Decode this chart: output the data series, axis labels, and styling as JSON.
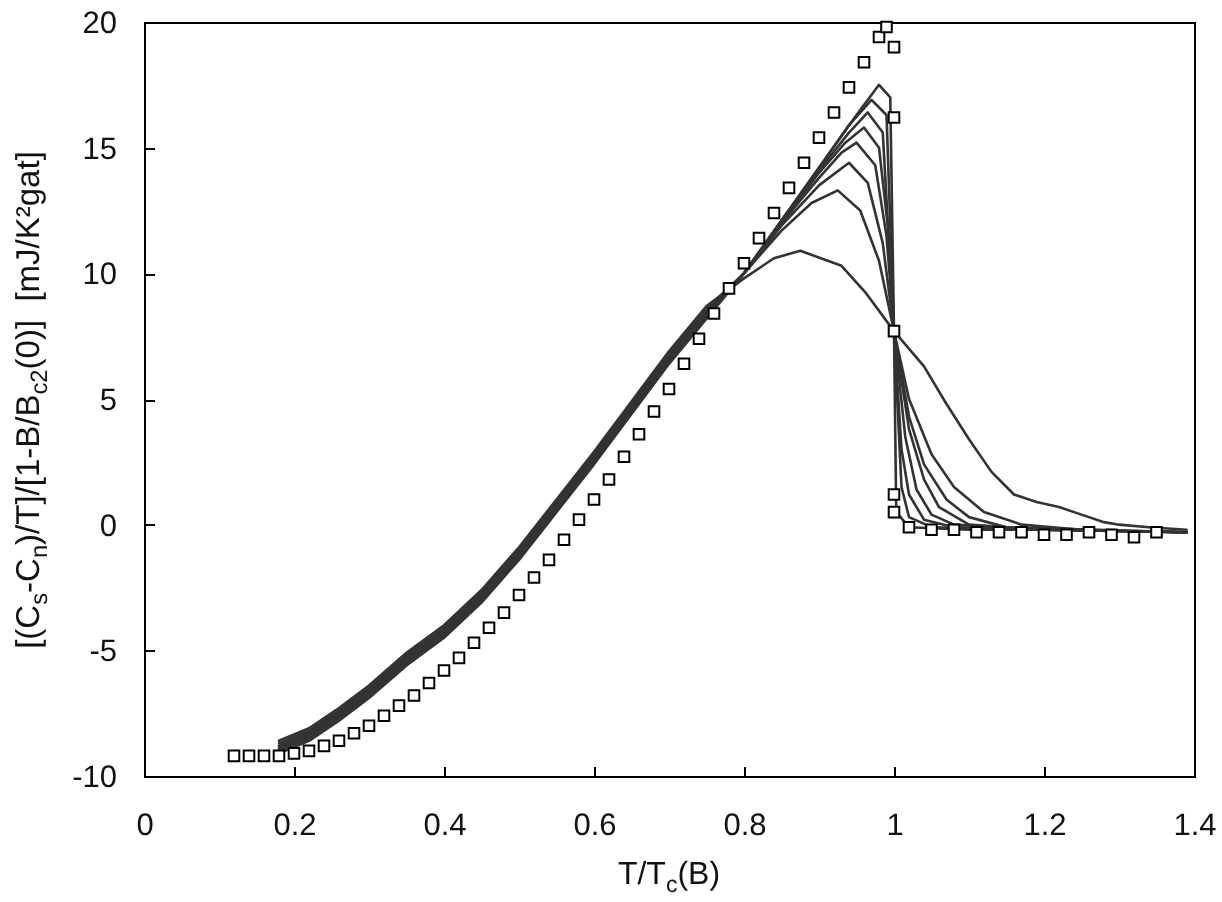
{
  "chart_data": {
    "type": "line",
    "xlabel": "T/T$_{c}$(B)",
    "ylabel": "[(C$_{s}$-C$_{n}$)/T]/[1-B/B$_{c2}$(0)]  [mJ/K²gat]",
    "xlim": [
      0,
      1.4
    ],
    "ylim": [
      -10,
      20
    ],
    "xticks": [
      0,
      0.2,
      0.4,
      0.6,
      0.8,
      1,
      1.2,
      1.4
    ],
    "yticks": [
      -10,
      -5,
      0,
      5,
      10,
      15,
      20
    ],
    "series": [
      {
        "color": "#333333",
        "x": [
          0.18,
          0.22,
          0.26,
          0.3,
          0.35,
          0.4,
          0.45,
          0.5,
          0.55,
          0.6,
          0.65,
          0.7,
          0.75,
          0.8,
          0.85,
          0.9,
          0.95,
          0.98,
          0.995,
          1,
          1.003,
          1.02,
          1.1,
          1.2,
          1.39
        ],
        "values": [
          -9.1,
          -8.6,
          -7.8,
          -6.9,
          -5.6,
          -4.5,
          -3.1,
          -1.4,
          0.5,
          2.4,
          4.4,
          6.4,
          8.2,
          10.0,
          12.1,
          14.2,
          16.3,
          17.5,
          17.0,
          7.7,
          0.5,
          -0.1,
          -0.2,
          -0.2,
          -0.3
        ]
      },
      {
        "color": "#333333",
        "x": [
          0.18,
          0.22,
          0.26,
          0.3,
          0.35,
          0.4,
          0.45,
          0.5,
          0.55,
          0.6,
          0.65,
          0.7,
          0.75,
          0.8,
          0.85,
          0.9,
          0.94,
          0.97,
          0.99,
          1,
          1.01,
          1.02,
          1.05,
          1.2,
          1.39
        ],
        "values": [
          -9.0,
          -8.5,
          -7.7,
          -6.8,
          -5.5,
          -4.4,
          -3.0,
          -1.3,
          0.6,
          2.5,
          4.5,
          6.5,
          8.3,
          10.0,
          12.1,
          14.2,
          15.9,
          16.9,
          16.3,
          7.7,
          1.5,
          0.3,
          -0.1,
          -0.2,
          -0.3
        ]
      },
      {
        "color": "#333333",
        "x": [
          0.18,
          0.22,
          0.26,
          0.3,
          0.35,
          0.4,
          0.45,
          0.5,
          0.55,
          0.6,
          0.65,
          0.7,
          0.75,
          0.8,
          0.85,
          0.9,
          0.94,
          0.965,
          0.985,
          1,
          1.01,
          1.02,
          1.04,
          1.08,
          1.2,
          1.39
        ],
        "values": [
          -8.9,
          -8.4,
          -7.6,
          -6.7,
          -5.4,
          -4.3,
          -2.9,
          -1.2,
          0.7,
          2.6,
          4.6,
          6.6,
          8.4,
          10.0,
          12.1,
          14.1,
          15.6,
          16.4,
          15.6,
          7.7,
          3.0,
          1.2,
          0.2,
          -0.1,
          -0.2,
          -0.3
        ]
      },
      {
        "color": "#333333",
        "x": [
          0.18,
          0.22,
          0.26,
          0.3,
          0.35,
          0.4,
          0.45,
          0.5,
          0.55,
          0.6,
          0.65,
          0.7,
          0.75,
          0.8,
          0.85,
          0.9,
          0.935,
          0.96,
          0.98,
          0.995,
          1,
          1.015,
          1.03,
          1.05,
          1.08,
          1.2,
          1.39
        ],
        "values": [
          -8.9,
          -8.4,
          -7.6,
          -6.7,
          -5.4,
          -4.3,
          -2.9,
          -1.2,
          0.7,
          2.6,
          4.6,
          6.6,
          8.4,
          10.0,
          12.0,
          14.0,
          15.2,
          15.8,
          15.0,
          11.0,
          7.7,
          3.5,
          1.4,
          0.4,
          0.0,
          -0.2,
          -0.3
        ]
      },
      {
        "color": "#333333",
        "x": [
          0.18,
          0.22,
          0.26,
          0.3,
          0.35,
          0.4,
          0.45,
          0.5,
          0.55,
          0.6,
          0.65,
          0.7,
          0.75,
          0.8,
          0.85,
          0.9,
          0.93,
          0.95,
          0.975,
          0.99,
          1,
          1.02,
          1.04,
          1.06,
          1.1,
          1.2,
          1.39
        ],
        "values": [
          -8.8,
          -8.3,
          -7.5,
          -6.6,
          -5.3,
          -4.2,
          -2.8,
          -1.1,
          0.8,
          2.7,
          4.7,
          6.7,
          8.5,
          10.0,
          12.0,
          13.8,
          14.8,
          15.2,
          14.3,
          11.5,
          7.7,
          3.8,
          1.8,
          0.7,
          0.0,
          -0.2,
          -0.3
        ]
      },
      {
        "color": "#333333",
        "x": [
          0.18,
          0.22,
          0.26,
          0.3,
          0.35,
          0.4,
          0.45,
          0.5,
          0.55,
          0.6,
          0.65,
          0.7,
          0.75,
          0.8,
          0.85,
          0.9,
          0.94,
          0.965,
          0.985,
          1,
          1.02,
          1.04,
          1.07,
          1.1,
          1.15,
          1.39
        ],
        "values": [
          -8.8,
          -8.3,
          -7.5,
          -6.6,
          -5.3,
          -4.2,
          -2.8,
          -1.1,
          0.8,
          2.7,
          4.7,
          6.7,
          8.5,
          10.0,
          11.9,
          13.5,
          14.4,
          13.6,
          11.2,
          7.7,
          4.3,
          2.4,
          1.0,
          0.3,
          -0.1,
          -0.3
        ]
      },
      {
        "color": "#333333",
        "x": [
          0.18,
          0.22,
          0.26,
          0.3,
          0.35,
          0.4,
          0.45,
          0.5,
          0.55,
          0.6,
          0.65,
          0.7,
          0.75,
          0.8,
          0.85,
          0.89,
          0.925,
          0.955,
          0.98,
          1,
          1.02,
          1.05,
          1.08,
          1.12,
          1.17,
          1.25,
          1.39
        ],
        "values": [
          -8.7,
          -8.2,
          -7.4,
          -6.5,
          -5.2,
          -4.1,
          -2.7,
          -1.0,
          0.9,
          2.8,
          4.8,
          6.8,
          8.6,
          10.0,
          11.7,
          12.8,
          13.3,
          12.5,
          10.5,
          7.7,
          5.0,
          2.8,
          1.5,
          0.5,
          0.0,
          -0.2,
          -0.3
        ]
      },
      {
        "color": "#333333",
        "x": [
          0.18,
          0.22,
          0.26,
          0.3,
          0.35,
          0.4,
          0.45,
          0.5,
          0.55,
          0.6,
          0.65,
          0.7,
          0.75,
          0.8,
          0.84,
          0.875,
          0.93,
          0.963,
          1,
          1.04,
          1.07,
          1.1,
          1.13,
          1.16,
          1.19,
          1.22,
          1.25,
          1.28,
          1.3,
          1.34,
          1.39
        ],
        "values": [
          -8.6,
          -8.1,
          -7.3,
          -6.4,
          -5.1,
          -4.0,
          -2.6,
          -0.9,
          1.0,
          2.9,
          4.9,
          6.9,
          8.7,
          9.8,
          10.6,
          10.9,
          10.3,
          9.2,
          7.7,
          6.3,
          4.8,
          3.4,
          2.1,
          1.2,
          0.9,
          0.7,
          0.4,
          0.1,
          0.0,
          -0.1,
          -0.2
        ]
      },
      {
        "type": "scatter",
        "marker": "square",
        "color": "#000000",
        "x": [
          0.12,
          0.14,
          0.16,
          0.18,
          0.2,
          0.22,
          0.24,
          0.26,
          0.28,
          0.3,
          0.32,
          0.34,
          0.36,
          0.38,
          0.4,
          0.42,
          0.44,
          0.46,
          0.48,
          0.5,
          0.52,
          0.54,
          0.56,
          0.58,
          0.6,
          0.62,
          0.64,
          0.66,
          0.68,
          0.7,
          0.72,
          0.74,
          0.76,
          0.78,
          0.8,
          0.82,
          0.84,
          0.86,
          0.88,
          0.9,
          0.92,
          0.94,
          0.96,
          0.98,
          0.99,
          1,
          1,
          1,
          1,
          1,
          1.02,
          1.05,
          1.08,
          1.11,
          1.14,
          1.17,
          1.2,
          1.23,
          1.26,
          1.29,
          1.32,
          1.35
        ],
        "values": [
          -9.2,
          -9.2,
          -9.2,
          -9.2,
          -9.1,
          -9.0,
          -8.8,
          -8.6,
          -8.3,
          -8.0,
          -7.6,
          -7.2,
          -6.8,
          -6.3,
          -5.8,
          -5.3,
          -4.7,
          -4.1,
          -3.5,
          -2.8,
          -2.1,
          -1.4,
          -0.6,
          0.2,
          1.0,
          1.8,
          2.7,
          3.6,
          4.5,
          5.4,
          6.4,
          7.4,
          8.4,
          9.4,
          10.4,
          11.4,
          12.4,
          13.4,
          14.4,
          15.4,
          16.4,
          17.4,
          18.4,
          19.4,
          19.8,
          19.0,
          16.2,
          7.7,
          1.2,
          0.5,
          -0.1,
          -0.2,
          -0.2,
          -0.3,
          -0.3,
          -0.3,
          -0.4,
          -0.4,
          -0.3,
          -0.4,
          -0.5,
          -0.3
        ]
      }
    ]
  }
}
